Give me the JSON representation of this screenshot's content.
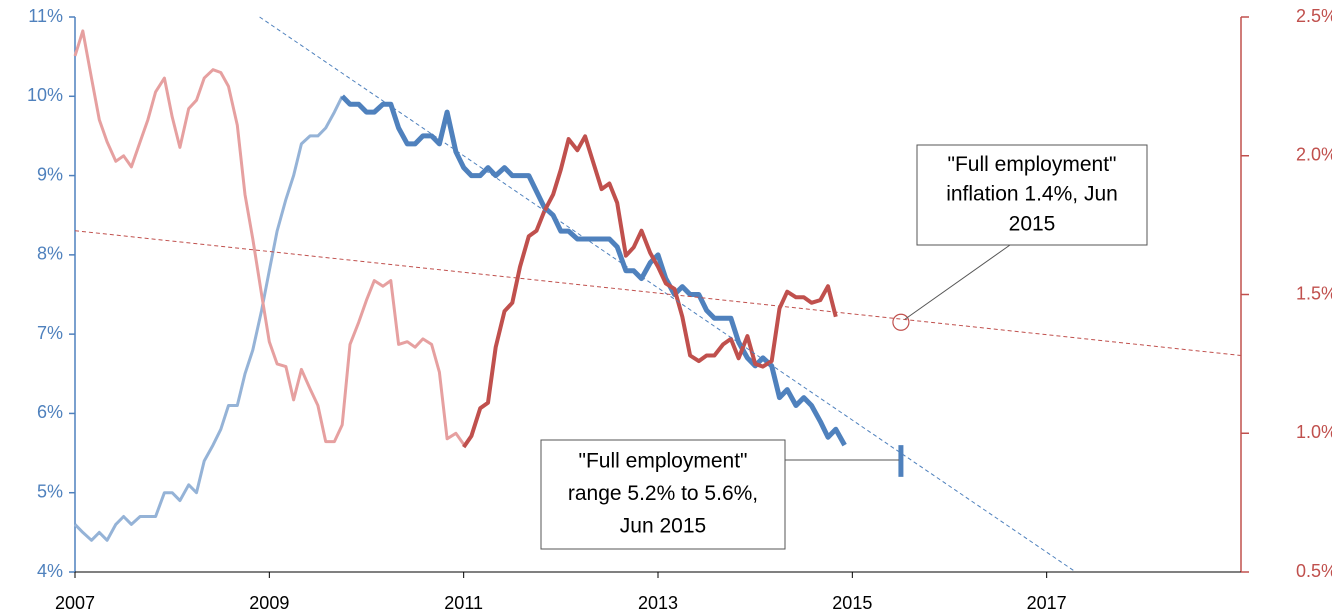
{
  "chart_data": {
    "type": "line",
    "xlim": [
      2007,
      2019
    ],
    "xticks": [
      2007,
      2009,
      2011,
      2013,
      2015,
      2017
    ],
    "ylim": [
      4,
      11
    ],
    "yticks": [
      {
        "value": 4,
        "label": "4%"
      },
      {
        "value": 5,
        "label": "5%"
      },
      {
        "value": 6,
        "label": "6%"
      },
      {
        "value": 7,
        "label": "7%"
      },
      {
        "value": 8,
        "label": "8%"
      },
      {
        "value": 9,
        "label": "9%"
      },
      {
        "value": 10,
        "label": "10%"
      },
      {
        "value": 11,
        "label": "11%"
      }
    ],
    "y2lim": [
      0.5,
      2.5
    ],
    "y2ticks": [
      {
        "value": 0.5,
        "label": "0.5%"
      },
      {
        "value": 1.0,
        "label": "1.0%"
      },
      {
        "value": 1.5,
        "label": "1.5%"
      },
      {
        "value": 2.0,
        "label": "2.0%"
      },
      {
        "value": 2.5,
        "label": "2.5%"
      }
    ],
    "y_color": "#4f81bd",
    "y2_color": "#c0504d",
    "series": [
      {
        "color": "#95b3d7",
        "width": 3,
        "axis": "y",
        "x": [
          2007,
          2007.08,
          2007.17,
          2007.25,
          2007.33,
          2007.42,
          2007.5,
          2007.58,
          2007.67,
          2007.75,
          2007.83,
          2007.92,
          2008,
          2008.08,
          2008.17,
          2008.25,
          2008.33,
          2008.42,
          2008.5,
          2008.58,
          2008.67,
          2008.75,
          2008.83,
          2008.92,
          2009,
          2009.08,
          2009.17,
          2009.25,
          2009.33,
          2009.42,
          2009.5,
          2009.58,
          2009.67,
          2009.75
        ],
        "values": [
          4.6,
          4.5,
          4.4,
          4.5,
          4.4,
          4.6,
          4.7,
          4.6,
          4.7,
          4.7,
          4.7,
          5.0,
          5.0,
          4.9,
          5.1,
          5.0,
          5.4,
          5.6,
          5.8,
          6.1,
          6.1,
          6.5,
          6.8,
          7.3,
          7.8,
          8.3,
          8.7,
          9.0,
          9.4,
          9.5,
          9.5,
          9.6,
          9.8,
          10.0
        ]
      },
      {
        "color": "#4f81bd",
        "width": 5,
        "axis": "y",
        "x": [
          2009.75,
          2009.83,
          2009.92,
          2010,
          2010.08,
          2010.17,
          2010.25,
          2010.33,
          2010.42,
          2010.5,
          2010.58,
          2010.67,
          2010.75,
          2010.83,
          2010.92,
          2011,
          2011.08,
          2011.17,
          2011.25,
          2011.33,
          2011.42,
          2011.5,
          2011.58,
          2011.67,
          2011.75,
          2011.83,
          2011.92,
          2012,
          2012.08,
          2012.17,
          2012.25,
          2012.33,
          2012.42,
          2012.5,
          2012.58,
          2012.67,
          2012.75,
          2012.83,
          2012.92,
          2013,
          2013.08,
          2013.17,
          2013.25,
          2013.33,
          2013.42,
          2013.5,
          2013.58,
          2013.67,
          2013.75,
          2013.83,
          2013.92,
          2014,
          2014.08,
          2014.17,
          2014.25,
          2014.33,
          2014.42,
          2014.5,
          2014.58,
          2014.67,
          2014.75,
          2014.83,
          2014.92
        ],
        "values": [
          10.0,
          9.9,
          9.9,
          9.8,
          9.8,
          9.9,
          9.9,
          9.6,
          9.4,
          9.4,
          9.5,
          9.5,
          9.4,
          9.8,
          9.3,
          9.1,
          9.0,
          9.0,
          9.1,
          9.0,
          9.1,
          9.0,
          9.0,
          9.0,
          8.8,
          8.6,
          8.5,
          8.3,
          8.3,
          8.2,
          8.2,
          8.2,
          8.2,
          8.2,
          8.1,
          7.8,
          7.8,
          7.7,
          7.9,
          8.0,
          7.7,
          7.5,
          7.6,
          7.5,
          7.5,
          7.3,
          7.2,
          7.2,
          7.2,
          6.9,
          6.7,
          6.6,
          6.7,
          6.6,
          6.2,
          6.3,
          6.1,
          6.2,
          6.1,
          5.9,
          5.7,
          5.8,
          5.6
        ]
      },
      {
        "color": "#e6a0a0",
        "width": 3,
        "axis": "y2",
        "x": [
          2007,
          2007.08,
          2007.17,
          2007.25,
          2007.33,
          2007.42,
          2007.5,
          2007.58,
          2007.67,
          2007.75,
          2007.83,
          2007.92,
          2008,
          2008.08,
          2008.17,
          2008.25,
          2008.33,
          2008.42,
          2008.5,
          2008.58,
          2008.67,
          2008.75,
          2008.83,
          2008.92,
          2009,
          2009.08,
          2009.17,
          2009.25,
          2009.33,
          2009.42,
          2009.5,
          2009.58,
          2009.67,
          2009.75,
          2009.83,
          2009.92,
          2010,
          2010.08,
          2010.17,
          2010.25,
          2010.33,
          2010.42,
          2010.5,
          2010.58,
          2010.67,
          2010.75,
          2010.83,
          2010.92,
          2011
        ],
        "values": [
          2.36,
          2.45,
          2.28,
          2.13,
          2.05,
          1.98,
          2.0,
          1.96,
          2.05,
          2.13,
          2.23,
          2.28,
          2.14,
          2.03,
          2.17,
          2.2,
          2.28,
          2.31,
          2.3,
          2.25,
          2.11,
          1.86,
          1.7,
          1.5,
          1.33,
          1.25,
          1.24,
          1.12,
          1.23,
          1.16,
          1.1,
          0.97,
          0.97,
          1.03,
          1.32,
          1.4,
          1.48,
          1.55,
          1.53,
          1.55,
          1.32,
          1.33,
          1.31,
          1.34,
          1.32,
          1.22,
          0.98,
          1.0,
          0.96
        ]
      },
      {
        "color": "#c0504d",
        "width": 4,
        "axis": "y2",
        "x": [
          2011,
          2011.08,
          2011.17,
          2011.25,
          2011.33,
          2011.42,
          2011.5,
          2011.58,
          2011.67,
          2011.75,
          2011.83,
          2011.92,
          2012,
          2012.08,
          2012.17,
          2012.25,
          2012.33,
          2012.42,
          2012.5,
          2012.58,
          2012.67,
          2012.75,
          2012.83,
          2012.92,
          2013,
          2013.08,
          2013.17,
          2013.25,
          2013.33,
          2013.42,
          2013.5,
          2013.58,
          2013.67,
          2013.75,
          2013.83,
          2013.92,
          2014,
          2014.08,
          2014.17,
          2014.25,
          2014.33,
          2014.42,
          2014.5,
          2014.58,
          2014.67,
          2014.75,
          2014.83
        ],
        "values": [
          0.95,
          0.99,
          1.09,
          1.11,
          1.31,
          1.44,
          1.47,
          1.6,
          1.71,
          1.73,
          1.8,
          1.86,
          1.95,
          2.06,
          2.02,
          2.07,
          1.98,
          1.88,
          1.9,
          1.83,
          1.64,
          1.67,
          1.73,
          1.65,
          1.6,
          1.54,
          1.52,
          1.42,
          1.28,
          1.26,
          1.28,
          1.28,
          1.32,
          1.34,
          1.27,
          1.35,
          1.25,
          1.24,
          1.26,
          1.45,
          1.51,
          1.49,
          1.49,
          1.47,
          1.48,
          1.53,
          1.42
        ]
      },
      {
        "color": "#4f81bd",
        "width": 1,
        "dashed": true,
        "axis": "y",
        "x": [
          2008.9,
          2017.3
        ],
        "values": [
          11.0,
          4.0
        ]
      },
      {
        "color": "#c0504d",
        "width": 1,
        "dashed": true,
        "axis": "y2",
        "x": [
          2007.0,
          2019.0
        ],
        "values": [
          1.73,
          1.28
        ]
      }
    ],
    "annotations": [
      {
        "lines": [
          "\"Full employment\"",
          "inflation 1.4%, Jun",
          "2015"
        ],
        "marker": "circle",
        "axis": "y2",
        "color": "#c0504d",
        "x": 2015.5,
        "y": 1.4
      },
      {
        "lines": [
          "\"Full employment\"",
          "range 5.2% to 5.6%,",
          "Jun 2015"
        ],
        "marker": "range",
        "axis": "y",
        "color": "#4f81bd",
        "x": 2015.5,
        "y_low": 5.2,
        "y_high": 5.6
      }
    ]
  }
}
